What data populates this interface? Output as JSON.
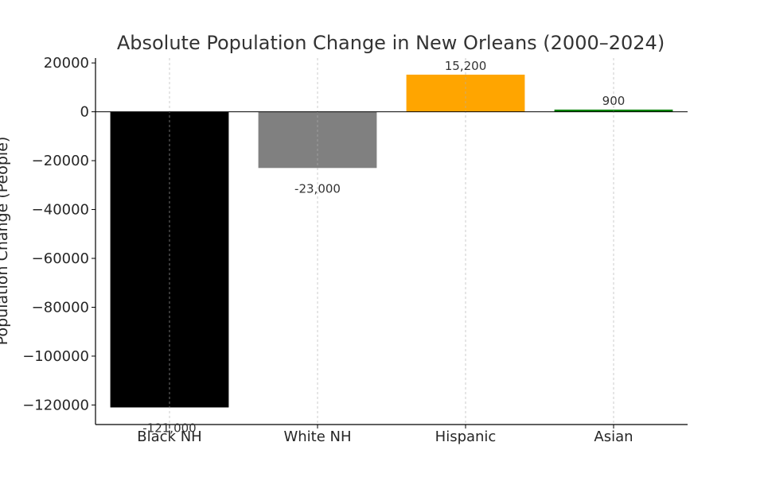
{
  "chart_data": {
    "type": "bar",
    "title": "Absolute Population Change in New Orleans (2000–2024)",
    "xlabel": "",
    "ylabel": "Population Change (People)",
    "categories": [
      "Black NH",
      "White NH",
      "Hispanic",
      "Asian"
    ],
    "values": [
      -121000,
      -23000,
      15200,
      900
    ],
    "value_labels": [
      "-121,000",
      "-23,000",
      "15,200",
      "900"
    ],
    "colors": [
      "#000000",
      "#808080",
      "#ffa500",
      "#008000"
    ],
    "ylim": [
      -128000,
      22000
    ],
    "yticks": [
      20000,
      0,
      -20000,
      -40000,
      -60000,
      -80000,
      -100000,
      -120000
    ],
    "ytick_labels": [
      "20000",
      "0",
      "−20000",
      "−40000",
      "−60000",
      "−80000",
      "−100000",
      "−120000"
    ],
    "grid": {
      "x": true,
      "y": false,
      "style": "dashed"
    },
    "zero_line": true
  }
}
